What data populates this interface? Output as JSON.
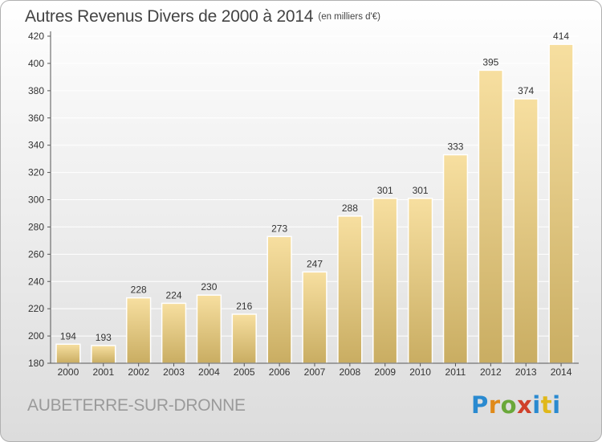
{
  "header": {
    "title": "Autres Revenus Divers de 2000 à 2014",
    "unit": "(en milliers d'€)"
  },
  "footer": {
    "town": "AUBETERRE-SUR-DRONNE",
    "logo": {
      "text": "Proxiti",
      "colors": [
        "#2a8ad0",
        "#e08a1a",
        "#6aa83a",
        "#d0402a",
        "#2a8ad0",
        "#e0b81a"
      ]
    }
  },
  "colors": {
    "bar_light": "#f7dfa0",
    "bar_dark": "#c9ad62",
    "grid": "#ffffff",
    "axis": "#555555"
  },
  "chart_data": {
    "type": "bar",
    "title": "Autres Revenus Divers de 2000 à 2014",
    "subtitle": "(en milliers d'€)",
    "xlabel": "",
    "ylabel": "",
    "categories": [
      "2000",
      "2001",
      "2002",
      "2003",
      "2004",
      "2005",
      "2006",
      "2007",
      "2008",
      "2009",
      "2010",
      "2011",
      "2012",
      "2013",
      "2014"
    ],
    "values": [
      194,
      193,
      228,
      224,
      230,
      216,
      273,
      247,
      288,
      301,
      301,
      333,
      395,
      374,
      414
    ],
    "ylim": [
      180,
      420
    ],
    "yticks": [
      180,
      200,
      220,
      240,
      260,
      280,
      300,
      320,
      340,
      360,
      380,
      400,
      420
    ],
    "grid": true,
    "legend": "none"
  }
}
